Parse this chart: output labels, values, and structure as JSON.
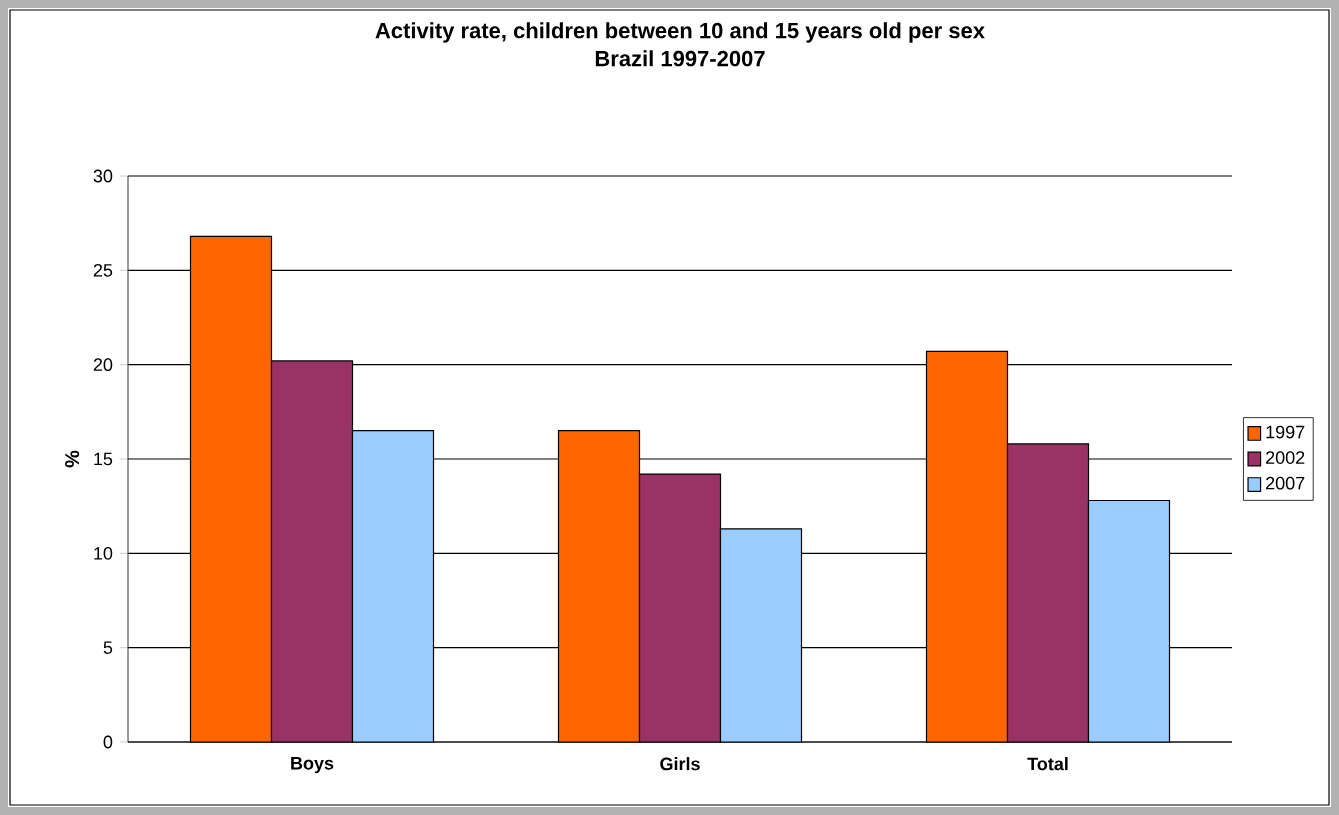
{
  "chart_data": {
    "type": "bar",
    "title": "Activity rate, children between 10 and 15 years old per sex",
    "subtitle": "Brazil 1997-2007",
    "ylabel": "%",
    "categories": [
      "Boys",
      "Girls",
      "Total"
    ],
    "series": [
      {
        "name": "1997",
        "color": "#ff6600",
        "values": [
          26.8,
          16.5,
          20.7
        ]
      },
      {
        "name": "2002",
        "color": "#993366",
        "values": [
          20.2,
          14.2,
          15.8
        ]
      },
      {
        "name": "2007",
        "color": "#99ccff",
        "values": [
          16.5,
          11.3,
          12.8
        ]
      }
    ],
    "ylim": [
      0,
      30
    ],
    "yticks": [
      0,
      5,
      10,
      15,
      20,
      25,
      30
    ],
    "grid": "y",
    "legend": "right"
  }
}
